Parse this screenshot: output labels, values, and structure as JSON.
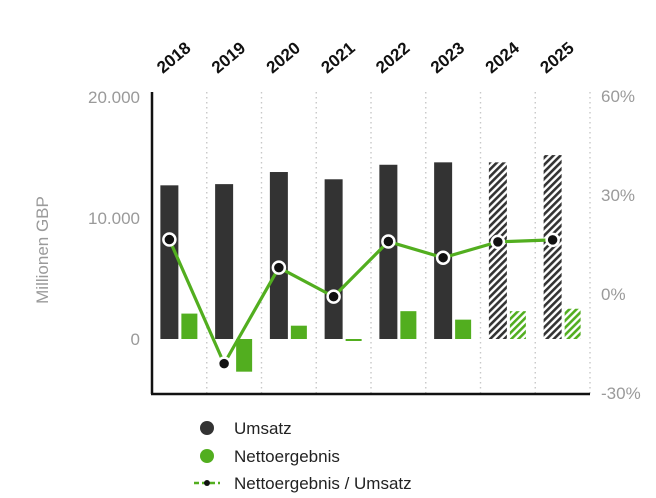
{
  "chart_data": {
    "type": "bar",
    "categories": [
      "2018",
      "2019",
      "2020",
      "2021",
      "2022",
      "2023",
      "2024",
      "2025"
    ],
    "estimated_categories": [
      "2024",
      "2025"
    ],
    "series": [
      {
        "name": "Umsatz",
        "type": "bar",
        "axis": "left",
        "values": [
          12700,
          12800,
          13800,
          13200,
          14400,
          14600,
          14600,
          15200
        ]
      },
      {
        "name": "Nettoergebnis",
        "type": "bar",
        "axis": "left",
        "values": [
          2100,
          -2700,
          1100,
          -100,
          2300,
          1600,
          2300,
          2500
        ]
      },
      {
        "name": "Nettoergebnis / Umsatz",
        "type": "line",
        "axis": "right",
        "values": [
          16.5,
          -21.1,
          8.0,
          -0.8,
          15.9,
          11.0,
          15.8,
          16.4
        ]
      }
    ],
    "ylabel": "Millionen GBP",
    "ylim": [
      -4500,
      20000
    ],
    "yticks": [
      0,
      10000,
      20000
    ],
    "ytick_labels": [
      "0",
      "10.000",
      "20.000"
    ],
    "y2lim": [
      -30,
      60
    ],
    "y2ticks": [
      -30,
      0,
      30,
      60
    ],
    "y2tick_labels": [
      "-30%",
      "0%",
      "30%",
      "60%"
    ],
    "legend_position": "bottom",
    "legend": [
      "Umsatz",
      "Nettoergebnis",
      "Nettoergebnis / Umsatz"
    ],
    "colors": {
      "revenue": "#333333",
      "net": "#52ae1f",
      "line": "#52ae1f",
      "marker": "#111111",
      "axis": "#111111",
      "grid": "#c8c8c8",
      "tick": "#9a9a9a"
    },
    "grid": "vertical dotted between categories"
  }
}
